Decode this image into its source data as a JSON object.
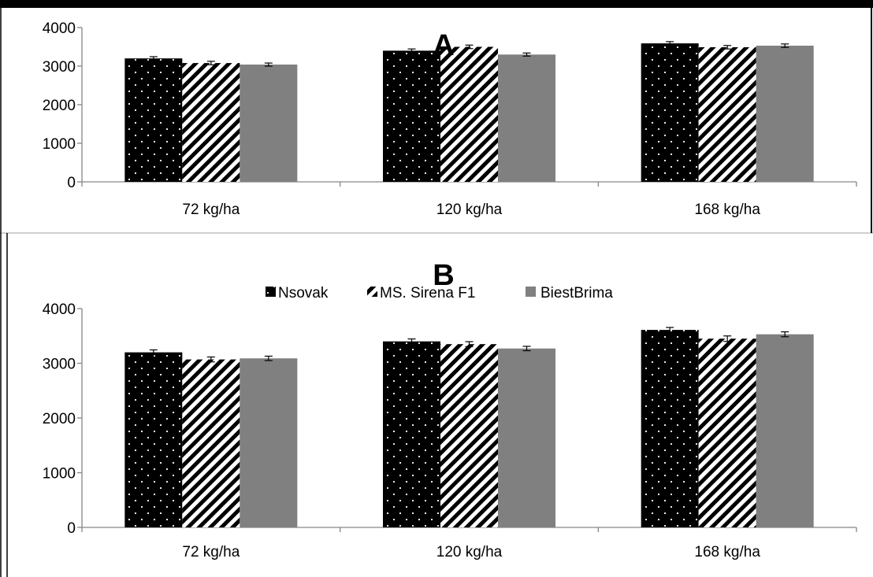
{
  "chart_data": [
    {
      "type": "bar",
      "title": "A",
      "categories": [
        "72 kg/ha",
        "120 kg/ha",
        "168 kg/ha"
      ],
      "series": [
        {
          "name": "Nsovak",
          "values": [
            3200,
            3400,
            3590
          ],
          "error": [
            45,
            45,
            45
          ]
        },
        {
          "name": "MS. Sirena F1",
          "values": [
            3080,
            3500,
            3490
          ],
          "error": [
            45,
            45,
            45
          ]
        },
        {
          "name": "BiestBrima",
          "values": [
            3040,
            3300,
            3530
          ],
          "error": [
            40,
            40,
            45
          ]
        }
      ],
      "yticks": [
        0,
        1000,
        2000,
        3000,
        4000
      ],
      "ylim": [
        0,
        4000
      ],
      "legend": "none"
    },
    {
      "type": "bar",
      "title": "B",
      "categories": [
        "72 kg/ha",
        "120 kg/ha",
        "168 kg/ha"
      ],
      "series": [
        {
          "name": "Nsovak",
          "values": [
            3200,
            3400,
            3610
          ],
          "error": [
            45,
            45,
            45
          ]
        },
        {
          "name": "MS. Sirena F1",
          "values": [
            3070,
            3350,
            3450
          ],
          "error": [
            45,
            45,
            50
          ]
        },
        {
          "name": "BiestBrima",
          "values": [
            3090,
            3270,
            3530
          ],
          "error": [
            40,
            40,
            45
          ]
        }
      ],
      "yticks": [
        0,
        1000,
        2000,
        3000,
        4000
      ],
      "ylim": [
        0,
        4000
      ],
      "legend": "top-center"
    }
  ],
  "colors": {
    "Nsovak": "#000000",
    "MS. Sirena F1": "#000000",
    "BiestBrima": "#808080"
  },
  "patterns": {
    "Nsovak": "white-dots-on-black",
    "MS. Sirena F1": "diagonal-stripes",
    "BiestBrima": "solid-gray"
  }
}
